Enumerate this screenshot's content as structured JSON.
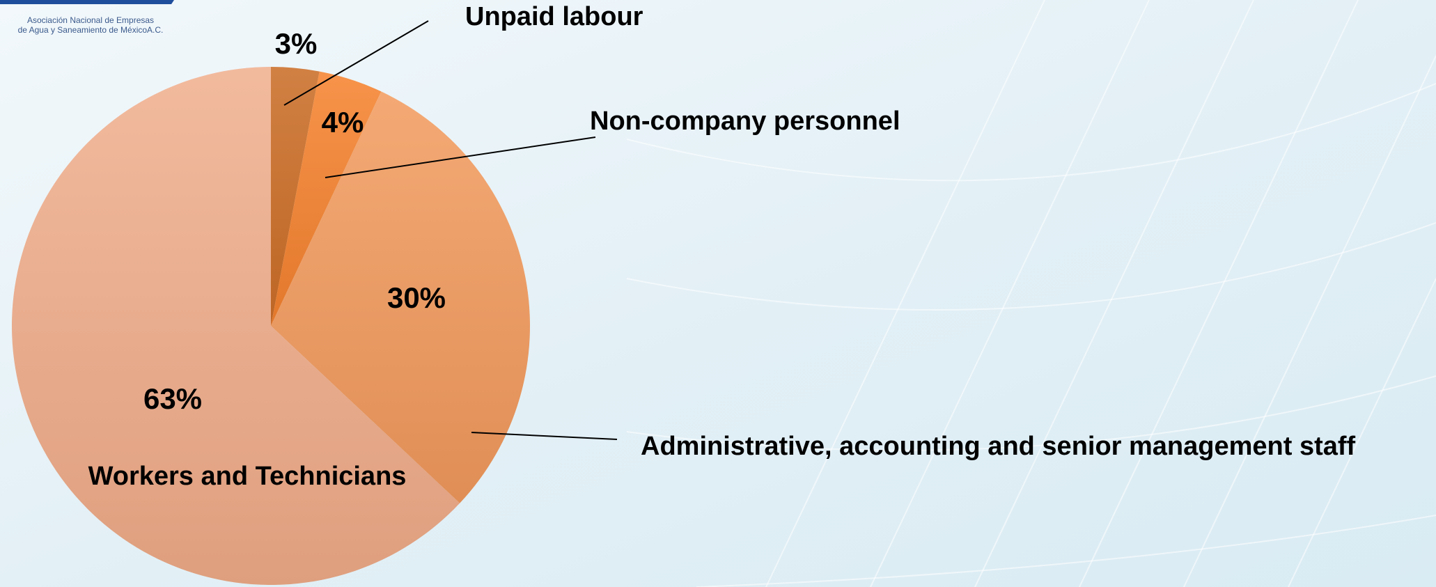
{
  "logo": {
    "line1": "Asociación Nacional de Empresas",
    "line2": "de Agua y Saneamiento de MéxicoA.C."
  },
  "chart_data": {
    "type": "pie",
    "categories": [
      "Unpaid labour",
      "Non-company personnel",
      "Administrative, accounting and senior management staff",
      "Workers and Technicians"
    ],
    "values": [
      3,
      4,
      30,
      63
    ],
    "value_labels": [
      "3%",
      "4%",
      "30%",
      "63%"
    ],
    "colors": [
      "#c96a22",
      "#f5802a",
      "#f29a5c",
      "#f0ae8c"
    ]
  }
}
